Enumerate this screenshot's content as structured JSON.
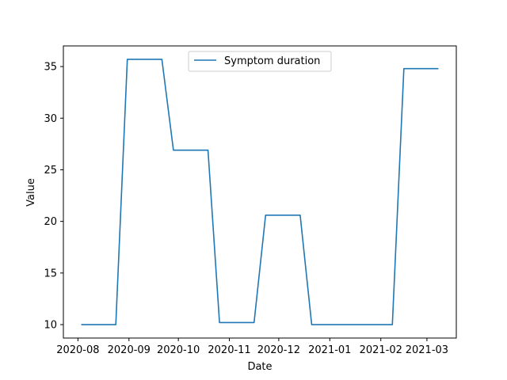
{
  "chart_data": {
    "type": "line",
    "title": "",
    "xlabel": "Date",
    "ylabel": "Value",
    "x_ticks": [
      "2020-08",
      "2020-09",
      "2020-10",
      "2020-11",
      "2020-12",
      "2021-01",
      "2021-02",
      "2021-03"
    ],
    "y_ticks": [
      10,
      15,
      20,
      25,
      30,
      35
    ],
    "ylim": [
      8.7,
      37.0
    ],
    "grid": false,
    "legend_position": "top-center",
    "series": [
      {
        "name": "Symptom duration",
        "color": "#1f77b4",
        "points": [
          {
            "x": "2020-08-03",
            "y": 10.0
          },
          {
            "x": "2020-08-24",
            "y": 10.0
          },
          {
            "x": "2020-08-31",
            "y": 35.7
          },
          {
            "x": "2020-09-21",
            "y": 35.7
          },
          {
            "x": "2020-09-28",
            "y": 26.9
          },
          {
            "x": "2020-10-19",
            "y": 26.9
          },
          {
            "x": "2020-10-26",
            "y": 10.2
          },
          {
            "x": "2020-11-16",
            "y": 10.2
          },
          {
            "x": "2020-11-23",
            "y": 20.6
          },
          {
            "x": "2020-12-14",
            "y": 20.6
          },
          {
            "x": "2020-12-21",
            "y": 10.0
          },
          {
            "x": "2021-02-08",
            "y": 10.0
          },
          {
            "x": "2021-02-15",
            "y": 34.8
          },
          {
            "x": "2021-03-08",
            "y": 34.8
          }
        ]
      }
    ]
  }
}
